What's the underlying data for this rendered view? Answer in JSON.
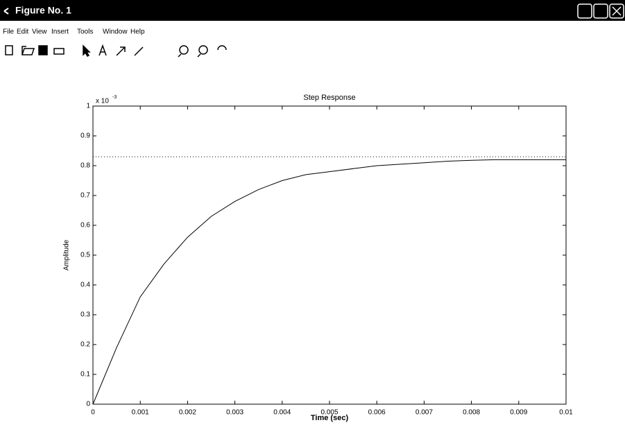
{
  "window": {
    "title": "Figure No. 1"
  },
  "menu": [
    "File",
    "Edit",
    "View",
    "Insert",
    "Tools",
    "Window",
    "Help"
  ],
  "chart_data": {
    "type": "line",
    "title": "Step Response",
    "x_label": "Time (sec)",
    "y_label": "Amplitude",
    "y_exponent": {
      "base": "x 10",
      "power": "-3"
    },
    "x": [
      0,
      0.0005,
      0.001,
      0.0015,
      0.002,
      0.0025,
      0.003,
      0.0035,
      0.004,
      0.0045,
      0.005,
      0.0055,
      0.006,
      0.0065,
      0.007,
      0.0075,
      0.008,
      0.0085,
      0.009,
      0.0095,
      0.01
    ],
    "values": [
      0,
      0.19,
      0.36,
      0.47,
      0.56,
      0.63,
      0.68,
      0.72,
      0.75,
      0.77,
      0.78,
      0.79,
      0.8,
      0.805,
      0.81,
      0.815,
      0.818,
      0.82,
      0.82,
      0.82,
      0.82
    ],
    "color": "#000000",
    "steady_state": 0.83,
    "xlim": [
      0,
      0.01
    ],
    "xticks": [
      0,
      0.001,
      0.002,
      0.003,
      0.004,
      0.005,
      0.006,
      0.007,
      0.008,
      0.009,
      0.01
    ],
    "ylim": [
      0,
      1
    ],
    "yticks": [
      0,
      0.1,
      0.2,
      0.3,
      0.4,
      0.5,
      0.6,
      0.7,
      0.8,
      0.9,
      1
    ],
    "grid": false
  }
}
